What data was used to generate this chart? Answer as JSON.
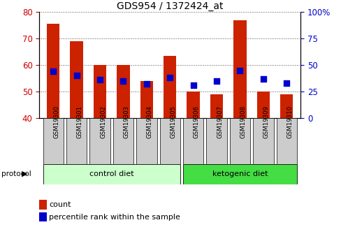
{
  "title": "GDS954 / 1372424_at",
  "samples": [
    "GSM19300",
    "GSM19301",
    "GSM19302",
    "GSM19303",
    "GSM19304",
    "GSM19305",
    "GSM19306",
    "GSM19307",
    "GSM19308",
    "GSM19309",
    "GSM19310"
  ],
  "count_values": [
    75.5,
    69.0,
    60.0,
    60.0,
    54.0,
    63.5,
    50.0,
    49.0,
    77.0,
    50.0,
    49.0
  ],
  "percentile_values": [
    44,
    40,
    36,
    35,
    32,
    38,
    31,
    35,
    45,
    37,
    33
  ],
  "ymin": 40,
  "ymax": 80,
  "yticks_left": [
    40,
    50,
    60,
    70,
    80
  ],
  "yticks_right": [
    0,
    25,
    50,
    75,
    100
  ],
  "bar_color": "#cc2200",
  "dot_color": "#0000cc",
  "protocol_groups": [
    {
      "label": "control diet",
      "indices": [
        0,
        1,
        2,
        3,
        4,
        5
      ],
      "color": "#ccffcc"
    },
    {
      "label": "ketogenic diet",
      "indices": [
        6,
        7,
        8,
        9,
        10
      ],
      "color": "#44dd44"
    }
  ],
  "left_tick_color": "#cc0000",
  "right_tick_color": "#0000cc",
  "bar_width": 0.55,
  "dot_size": 28,
  "sample_box_color": "#cccccc",
  "legend_items": [
    "count",
    "percentile rank within the sample"
  ]
}
